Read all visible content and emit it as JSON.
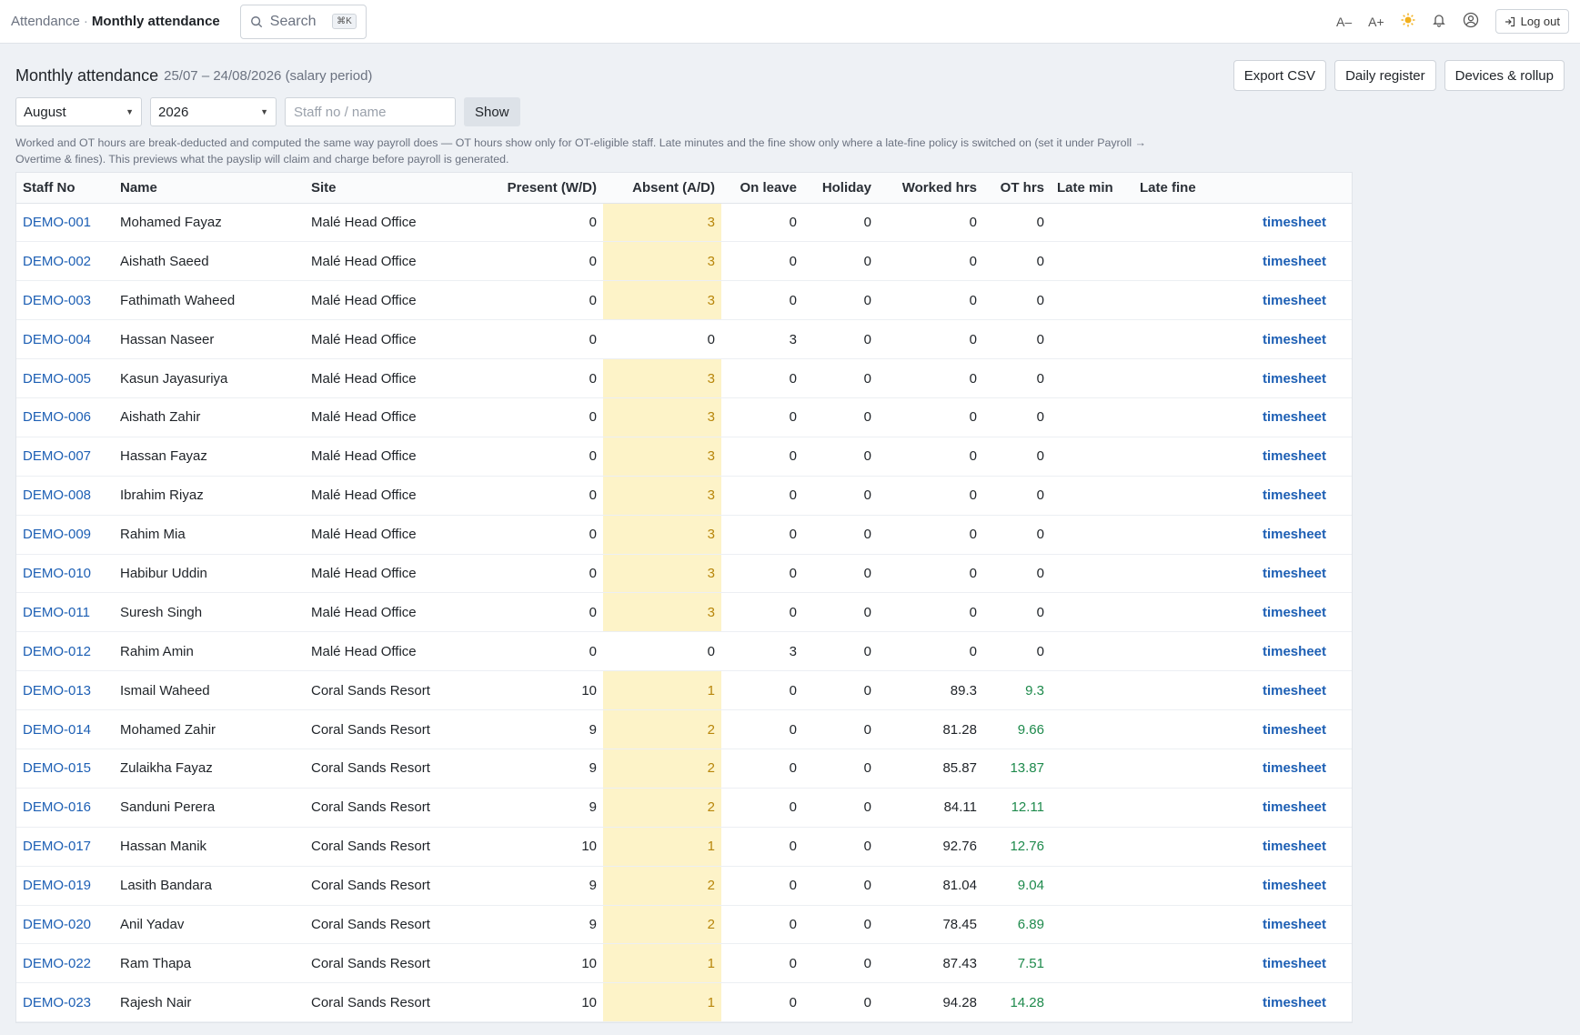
{
  "breadcrumb": {
    "parent": "Attendance",
    "separator": "·",
    "current": "Monthly attendance"
  },
  "search": {
    "label": "Search",
    "shortcut": "⌘K"
  },
  "topbar": {
    "font_smaller": "A–",
    "font_larger": "A+",
    "logout_label": "Log out"
  },
  "page": {
    "title": "Monthly attendance",
    "subtitle": "25/07 – 24/08/2026 (salary period)"
  },
  "actions": {
    "export_label": "Export CSV",
    "daily_label": "Daily register",
    "devices_label": "Devices & rollup"
  },
  "filters": {
    "month": "August",
    "year": "2026",
    "staff_placeholder": "Staff no / name",
    "show_label": "Show"
  },
  "note": "Worked and OT hours are break-deducted and computed the same way payroll does — OT hours show only for OT-eligible staff. Late minutes and the fine show only where a late-fine policy is switched on (set it under Payroll → Overtime & fines). This previews what the payslip will claim and charge before payroll is generated.",
  "table": {
    "columns": [
      "Staff No",
      "Name",
      "Site",
      "Present (W/D)",
      "Absent (A/D)",
      "On leave",
      "Holiday",
      "Worked hrs",
      "OT hrs",
      "Late min",
      "Late fine",
      ""
    ],
    "link_label": "timesheet",
    "rows": [
      {
        "staff": "DEMO-001",
        "name": "Mohamed Fayaz",
        "site": "Malé Head Office",
        "present": "0",
        "absent": "3",
        "leave": "0",
        "holiday": "0",
        "worked": "0",
        "ot": "0",
        "late_min": "",
        "late_fine": ""
      },
      {
        "staff": "DEMO-002",
        "name": "Aishath Saeed",
        "site": "Malé Head Office",
        "present": "0",
        "absent": "3",
        "leave": "0",
        "holiday": "0",
        "worked": "0",
        "ot": "0",
        "late_min": "",
        "late_fine": ""
      },
      {
        "staff": "DEMO-003",
        "name": "Fathimath Waheed",
        "site": "Malé Head Office",
        "present": "0",
        "absent": "3",
        "leave": "0",
        "holiday": "0",
        "worked": "0",
        "ot": "0",
        "late_min": "",
        "late_fine": ""
      },
      {
        "staff": "DEMO-004",
        "name": "Hassan Naseer",
        "site": "Malé Head Office",
        "present": "0",
        "absent": "0",
        "leave": "3",
        "holiday": "0",
        "worked": "0",
        "ot": "0",
        "late_min": "",
        "late_fine": ""
      },
      {
        "staff": "DEMO-005",
        "name": "Kasun Jayasuriya",
        "site": "Malé Head Office",
        "present": "0",
        "absent": "3",
        "leave": "0",
        "holiday": "0",
        "worked": "0",
        "ot": "0",
        "late_min": "",
        "late_fine": ""
      },
      {
        "staff": "DEMO-006",
        "name": "Aishath Zahir",
        "site": "Malé Head Office",
        "present": "0",
        "absent": "3",
        "leave": "0",
        "holiday": "0",
        "worked": "0",
        "ot": "0",
        "late_min": "",
        "late_fine": ""
      },
      {
        "staff": "DEMO-007",
        "name": "Hassan Fayaz",
        "site": "Malé Head Office",
        "present": "0",
        "absent": "3",
        "leave": "0",
        "holiday": "0",
        "worked": "0",
        "ot": "0",
        "late_min": "",
        "late_fine": ""
      },
      {
        "staff": "DEMO-008",
        "name": "Ibrahim Riyaz",
        "site": "Malé Head Office",
        "present": "0",
        "absent": "3",
        "leave": "0",
        "holiday": "0",
        "worked": "0",
        "ot": "0",
        "late_min": "",
        "late_fine": ""
      },
      {
        "staff": "DEMO-009",
        "name": "Rahim Mia",
        "site": "Malé Head Office",
        "present": "0",
        "absent": "3",
        "leave": "0",
        "holiday": "0",
        "worked": "0",
        "ot": "0",
        "late_min": "",
        "late_fine": ""
      },
      {
        "staff": "DEMO-010",
        "name": "Habibur Uddin",
        "site": "Malé Head Office",
        "present": "0",
        "absent": "3",
        "leave": "0",
        "holiday": "0",
        "worked": "0",
        "ot": "0",
        "late_min": "",
        "late_fine": ""
      },
      {
        "staff": "DEMO-011",
        "name": "Suresh Singh",
        "site": "Malé Head Office",
        "present": "0",
        "absent": "3",
        "leave": "0",
        "holiday": "0",
        "worked": "0",
        "ot": "0",
        "late_min": "",
        "late_fine": ""
      },
      {
        "staff": "DEMO-012",
        "name": "Rahim Amin",
        "site": "Malé Head Office",
        "present": "0",
        "absent": "0",
        "leave": "3",
        "holiday": "0",
        "worked": "0",
        "ot": "0",
        "late_min": "",
        "late_fine": ""
      },
      {
        "staff": "DEMO-013",
        "name": "Ismail Waheed",
        "site": "Coral Sands Resort",
        "present": "10",
        "absent": "1",
        "leave": "0",
        "holiday": "0",
        "worked": "89.3",
        "ot": "9.3",
        "late_min": "",
        "late_fine": ""
      },
      {
        "staff": "DEMO-014",
        "name": "Mohamed Zahir",
        "site": "Coral Sands Resort",
        "present": "9",
        "absent": "2",
        "leave": "0",
        "holiday": "0",
        "worked": "81.28",
        "ot": "9.66",
        "late_min": "",
        "late_fine": ""
      },
      {
        "staff": "DEMO-015",
        "name": "Zulaikha Fayaz",
        "site": "Coral Sands Resort",
        "present": "9",
        "absent": "2",
        "leave": "0",
        "holiday": "0",
        "worked": "85.87",
        "ot": "13.87",
        "late_min": "",
        "late_fine": ""
      },
      {
        "staff": "DEMO-016",
        "name": "Sanduni Perera",
        "site": "Coral Sands Resort",
        "present": "9",
        "absent": "2",
        "leave": "0",
        "holiday": "0",
        "worked": "84.11",
        "ot": "12.11",
        "late_min": "",
        "late_fine": ""
      },
      {
        "staff": "DEMO-017",
        "name": "Hassan Manik",
        "site": "Coral Sands Resort",
        "present": "10",
        "absent": "1",
        "leave": "0",
        "holiday": "0",
        "worked": "92.76",
        "ot": "12.76",
        "late_min": "",
        "late_fine": ""
      },
      {
        "staff": "DEMO-019",
        "name": "Lasith Bandara",
        "site": "Coral Sands Resort",
        "present": "9",
        "absent": "2",
        "leave": "0",
        "holiday": "0",
        "worked": "81.04",
        "ot": "9.04",
        "late_min": "",
        "late_fine": ""
      },
      {
        "staff": "DEMO-020",
        "name": "Anil Yadav",
        "site": "Coral Sands Resort",
        "present": "9",
        "absent": "2",
        "leave": "0",
        "holiday": "0",
        "worked": "78.45",
        "ot": "6.89",
        "late_min": "",
        "late_fine": ""
      },
      {
        "staff": "DEMO-022",
        "name": "Ram Thapa",
        "site": "Coral Sands Resort",
        "present": "10",
        "absent": "1",
        "leave": "0",
        "holiday": "0",
        "worked": "87.43",
        "ot": "7.51",
        "late_min": "",
        "late_fine": ""
      },
      {
        "staff": "DEMO-023",
        "name": "Rajesh Nair",
        "site": "Coral Sands Resort",
        "present": "10",
        "absent": "1",
        "leave": "0",
        "holiday": "0",
        "worked": "94.28",
        "ot": "14.28",
        "late_min": "",
        "late_fine": ""
      }
    ]
  },
  "colors": {
    "link": "#1d5fb4",
    "absent_highlight": "#fdf3c8",
    "absent_text": "#b8860b",
    "ot_positive": "#1e8a4c"
  },
  "icons": {
    "search": "search-icon",
    "theme": "sun-icon",
    "notifications": "bell-icon",
    "account": "user-circle-icon",
    "logout": "logout-icon"
  }
}
